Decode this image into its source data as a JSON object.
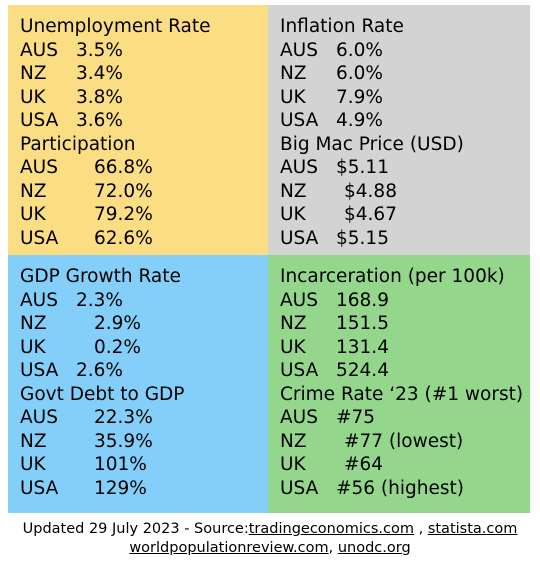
{
  "panels": {
    "unemployment": {
      "title": "Unemployment Rate",
      "rows": [
        {
          "c": "AUS",
          "v": "3.5%"
        },
        {
          "c": "NZ",
          "v": "3.4%"
        },
        {
          "c": "UK",
          "v": "3.8%"
        },
        {
          "c": "USA",
          "v": "3.6%"
        }
      ]
    },
    "participation": {
      "title": "Participation",
      "rows": [
        {
          "c": "AUS",
          "v": "66.8%"
        },
        {
          "c": "NZ",
          "v": "72.0%"
        },
        {
          "c": "UK",
          "v": "79.2%"
        },
        {
          "c": "USA",
          "v": "62.6%"
        }
      ]
    },
    "inflation": {
      "title": "Inflation Rate",
      "rows": [
        {
          "c": "AUS",
          "v": "6.0%"
        },
        {
          "c": "NZ",
          "v": "6.0%"
        },
        {
          "c": "UK",
          "v": "7.9%"
        },
        {
          "c": "USA",
          "v": "4.9%"
        }
      ]
    },
    "bigmac": {
      "title": "Big Mac Price (USD)",
      "rows": [
        {
          "c": "AUS",
          "v": "$5.11"
        },
        {
          "c": "NZ",
          "v": "$4.88"
        },
        {
          "c": "UK",
          "v": "$4.67"
        },
        {
          "c": "USA",
          "v": "$5.15"
        }
      ]
    },
    "gdp": {
      "title": "GDP Growth Rate",
      "rows": [
        {
          "c": "AUS",
          "v": "2.3%"
        },
        {
          "c": "NZ",
          "v": "2.9%"
        },
        {
          "c": "UK",
          "v": "0.2%"
        },
        {
          "c": "USA",
          "v": "2.6%"
        }
      ]
    },
    "debt": {
      "title": "Govt Debt to GDP",
      "rows": [
        {
          "c": "AUS",
          "v": "22.3%"
        },
        {
          "c": "NZ",
          "v": "35.9%"
        },
        {
          "c": "UK",
          "v": "101%"
        },
        {
          "c": "USA",
          "v": "129%"
        }
      ]
    },
    "incarceration": {
      "title": "Incarceration (per 100k)",
      "rows": [
        {
          "c": "AUS",
          "v": "168.9"
        },
        {
          "c": "NZ",
          "v": "151.5"
        },
        {
          "c": "UK",
          "v": "131.4"
        },
        {
          "c": "USA",
          "v": "524.4"
        }
      ]
    },
    "crime": {
      "title": "Crime Rate ‘23 (#1 worst)",
      "rows": [
        {
          "c": "AUS",
          "v": "#75"
        },
        {
          "c": "NZ",
          "v": "#77 (lowest)"
        },
        {
          "c": "UK",
          "v": "#64"
        },
        {
          "c": "USA",
          "v": "#56 (highest)"
        }
      ]
    }
  },
  "colors": {
    "yellow": "#fbdd84",
    "grey": "#d3d3d3",
    "blue": "#83cffa",
    "green": "#94d78c"
  },
  "footer": {
    "prefix": "Updated 29 July 2023 - Source:",
    "link1": "tradingeconomics.com",
    "sep1": " , ",
    "link2": "statista.com",
    "link3": "worldpopulationreview.com",
    "sep2": ", ",
    "link4": "unodc.org"
  }
}
